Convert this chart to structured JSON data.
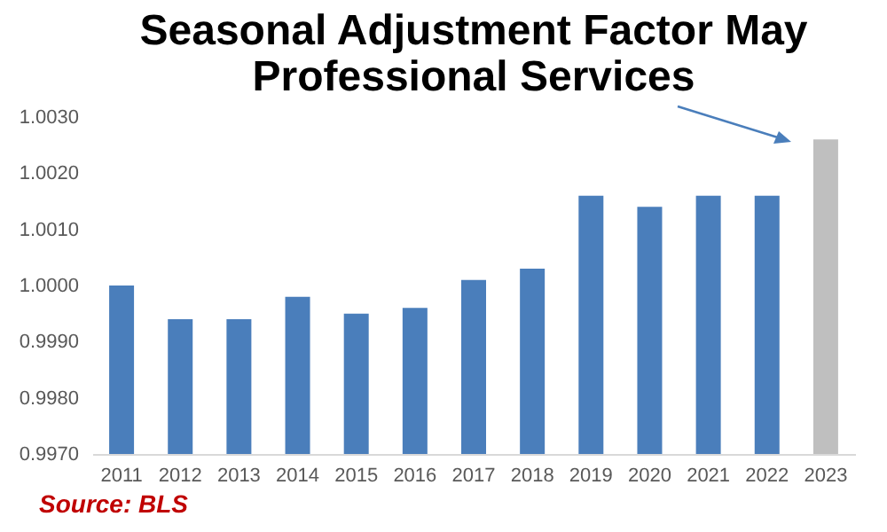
{
  "chart_data": {
    "type": "bar",
    "title": "Seasonal Adjustment Factor May",
    "subtitle": "Professional Services",
    "categories": [
      "2011",
      "2012",
      "2013",
      "2014",
      "2015",
      "2016",
      "2017",
      "2018",
      "2019",
      "2020",
      "2021",
      "2022",
      "2023"
    ],
    "values": [
      1.0,
      0.9994,
      0.9994,
      0.9998,
      0.9995,
      0.9996,
      1.0001,
      1.0003,
      1.0016,
      1.0014,
      1.0016,
      1.0016,
      1.0026
    ],
    "colors": [
      "#4a7ebb",
      "#4a7ebb",
      "#4a7ebb",
      "#4a7ebb",
      "#4a7ebb",
      "#4a7ebb",
      "#4a7ebb",
      "#4a7ebb",
      "#4a7ebb",
      "#4a7ebb",
      "#4a7ebb",
      "#4a7ebb",
      "#bfbfbf"
    ],
    "ylim": [
      0.997,
      1.003
    ],
    "yticks": [
      {
        "value": 0.997,
        "label": "0.9970"
      },
      {
        "value": 0.998,
        "label": "0.9980"
      },
      {
        "value": 0.999,
        "label": "0.9990"
      },
      {
        "value": 1.0,
        "label": "1.0000"
      },
      {
        "value": 1.001,
        "label": "1.0010"
      },
      {
        "value": 1.002,
        "label": "1.0020"
      },
      {
        "value": 1.003,
        "label": "1.0030"
      }
    ],
    "grid": false,
    "annotations": [
      "Source: BLS"
    ]
  }
}
